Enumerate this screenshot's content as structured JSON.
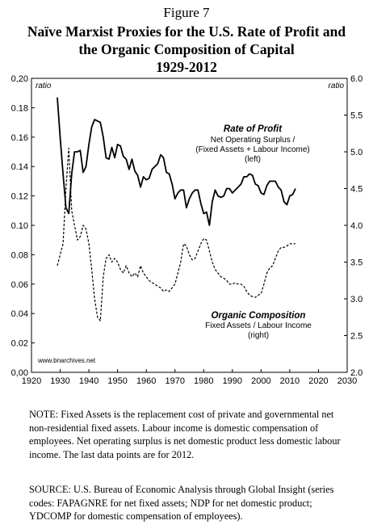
{
  "figure_label": "Figure 7",
  "title_line1": "Naïve Marxist Proxies for the U.S. Rate of Profit and",
  "title_line2": "the Organic Composition of Capital",
  "title_line3": "1929-2012",
  "note": "NOTE: Fixed Assets is the replacement cost of private and governmental net non-residential fixed assets. Labour income is domestic compensation of employees. Net operating surplus is net domestic product less domestic labour income. The last data points are for 2012.",
  "source": "SOURCE: U.S. Bureau of Economic Analysis through Global Insight (series codes: FAPAGNRE for net fixed assets; NDP for net domestic product; YDCOMP for domestic compensation of employees).",
  "chart_data": {
    "type": "line",
    "xlim": [
      1920,
      2030
    ],
    "x_ticks": [
      1920,
      1930,
      1940,
      1950,
      1960,
      1970,
      1980,
      1990,
      2000,
      2010,
      2020,
      2030
    ],
    "y_left": {
      "lim": [
        0,
        0.2
      ],
      "ticks": [
        "0,00",
        "0.02",
        "0.04",
        "0.06",
        "0.08",
        "0.10",
        "0.12",
        "0.14",
        "0.16",
        "0.18",
        "0,20"
      ],
      "unit": "ratio"
    },
    "y_right": {
      "lim": [
        2.0,
        6.0
      ],
      "ticks": [
        "2.0",
        "2.5",
        "3.0",
        "3.5",
        "4.0",
        "4.5",
        "5.0",
        "5.5",
        "6.0"
      ],
      "unit": "ratio"
    },
    "credit": "www.bnarchives.net",
    "series": [
      {
        "name": "Rate of Profit",
        "subtitle_1": "Net Operating Surplus /",
        "subtitle_2": "(Fixed Assets + Labour Income)",
        "subtitle_3": "(left)",
        "axis": "left",
        "style": "solid",
        "x": [
          1929,
          1930,
          1931,
          1932,
          1933,
          1934,
          1935,
          1936,
          1937,
          1938,
          1939,
          1940,
          1941,
          1942,
          1943,
          1944,
          1945,
          1946,
          1947,
          1948,
          1949,
          1950,
          1951,
          1952,
          1953,
          1954,
          1955,
          1956,
          1957,
          1958,
          1959,
          1960,
          1961,
          1962,
          1963,
          1964,
          1965,
          1966,
          1967,
          1968,
          1969,
          1970,
          1971,
          1972,
          1973,
          1974,
          1975,
          1976,
          1977,
          1978,
          1979,
          1980,
          1981,
          1982,
          1983,
          1984,
          1985,
          1986,
          1987,
          1988,
          1989,
          1990,
          1991,
          1992,
          1993,
          1994,
          1995,
          1996,
          1997,
          1998,
          1999,
          2000,
          2001,
          2002,
          2003,
          2004,
          2005,
          2006,
          2007,
          2008,
          2009,
          2010,
          2011,
          2012
        ],
        "y": [
          0.187,
          0.16,
          0.135,
          0.112,
          0.108,
          0.135,
          0.15,
          0.15,
          0.151,
          0.136,
          0.14,
          0.155,
          0.167,
          0.172,
          0.171,
          0.17,
          0.16,
          0.146,
          0.145,
          0.153,
          0.146,
          0.155,
          0.154,
          0.147,
          0.145,
          0.138,
          0.145,
          0.137,
          0.134,
          0.126,
          0.133,
          0.131,
          0.132,
          0.138,
          0.14,
          0.142,
          0.148,
          0.146,
          0.136,
          0.135,
          0.128,
          0.118,
          0.122,
          0.124,
          0.124,
          0.112,
          0.118,
          0.122,
          0.124,
          0.124,
          0.115,
          0.108,
          0.109,
          0.1,
          0.116,
          0.124,
          0.12,
          0.119,
          0.12,
          0.125,
          0.125,
          0.122,
          0.124,
          0.126,
          0.128,
          0.133,
          0.133,
          0.135,
          0.134,
          0.128,
          0.127,
          0.122,
          0.121,
          0.127,
          0.13,
          0.13,
          0.13,
          0.126,
          0.124,
          0.116,
          0.114,
          0.12,
          0.121,
          0.125
        ]
      },
      {
        "name": "Organic Composition",
        "subtitle_1": "Fixed Assets / Labour Income",
        "subtitle_2": "(right)",
        "axis": "right",
        "style": "dashed",
        "x": [
          1929,
          1930,
          1931,
          1932,
          1933,
          1934,
          1935,
          1936,
          1937,
          1938,
          1939,
          1940,
          1941,
          1942,
          1943,
          1944,
          1945,
          1946,
          1947,
          1948,
          1949,
          1950,
          1951,
          1952,
          1953,
          1954,
          1955,
          1956,
          1957,
          1958,
          1959,
          1960,
          1961,
          1962,
          1963,
          1964,
          1965,
          1966,
          1967,
          1968,
          1969,
          1970,
          1971,
          1972,
          1973,
          1974,
          1975,
          1976,
          1977,
          1978,
          1979,
          1980,
          1981,
          1982,
          1983,
          1984,
          1985,
          1986,
          1987,
          1988,
          1989,
          1990,
          1991,
          1992,
          1993,
          1994,
          1995,
          1996,
          1997,
          1998,
          1999,
          2000,
          2001,
          2002,
          2003,
          2004,
          2005,
          2006,
          2007,
          2008,
          2009,
          2010,
          2011,
          2012
        ],
        "y": [
          3.45,
          3.6,
          3.75,
          4.5,
          5.05,
          4.2,
          4.0,
          3.8,
          3.85,
          4.0,
          3.95,
          3.75,
          3.4,
          3.0,
          2.75,
          2.7,
          3.3,
          3.55,
          3.6,
          3.5,
          3.55,
          3.5,
          3.4,
          3.35,
          3.45,
          3.35,
          3.3,
          3.35,
          3.3,
          3.45,
          3.35,
          3.3,
          3.25,
          3.22,
          3.2,
          3.17,
          3.15,
          3.1,
          3.12,
          3.1,
          3.15,
          3.2,
          3.35,
          3.5,
          3.75,
          3.72,
          3.6,
          3.53,
          3.55,
          3.65,
          3.75,
          3.82,
          3.8,
          3.65,
          3.5,
          3.4,
          3.35,
          3.3,
          3.28,
          3.25,
          3.2,
          3.2,
          3.22,
          3.2,
          3.2,
          3.17,
          3.1,
          3.05,
          3.03,
          3.02,
          3.05,
          3.07,
          3.2,
          3.35,
          3.42,
          3.45,
          3.55,
          3.65,
          3.7,
          3.7,
          3.72,
          3.75,
          3.75,
          3.75
        ]
      }
    ]
  }
}
